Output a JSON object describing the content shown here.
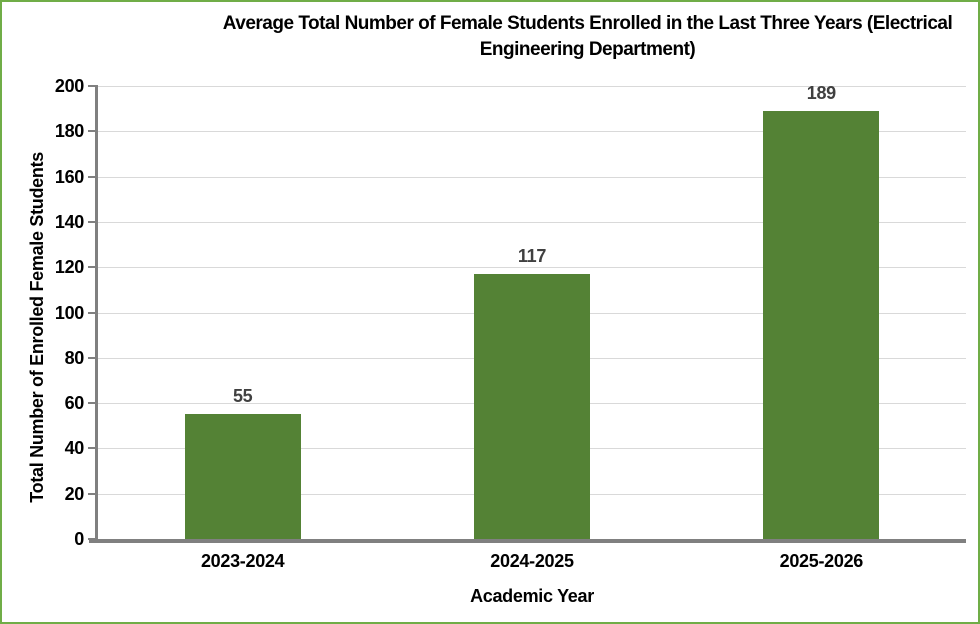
{
  "frame": {
    "border_color": "#70AD47",
    "background_color": "#FFFFFF"
  },
  "title_lines": [
    "Average Total Number of Female Students Enrolled in the Last Three Years (Electrical",
    "Engineering Department)"
  ],
  "chart_data": {
    "type": "bar",
    "title": "Average Total Number of Female Students Enrolled in the Last Three Years (Electrical Engineering Department)",
    "categories": [
      "2023-2024",
      "2024-2025",
      "2025-2026"
    ],
    "values": [
      55,
      117,
      189
    ],
    "xlabel": "Academic Year",
    "ylabel": "Total Number of Enrolled Female Students",
    "ylim": [
      0,
      200
    ],
    "ytick_step": 20,
    "yticks": [
      0,
      20,
      40,
      60,
      80,
      100,
      120,
      140,
      160,
      180,
      200
    ],
    "grid": true,
    "legend_position": "none",
    "bar_color": "#548235",
    "data_label_color": "#404040",
    "axis_line_color": "#808080",
    "gridline_color": "#D9D9D9",
    "text_color": "#000000"
  }
}
